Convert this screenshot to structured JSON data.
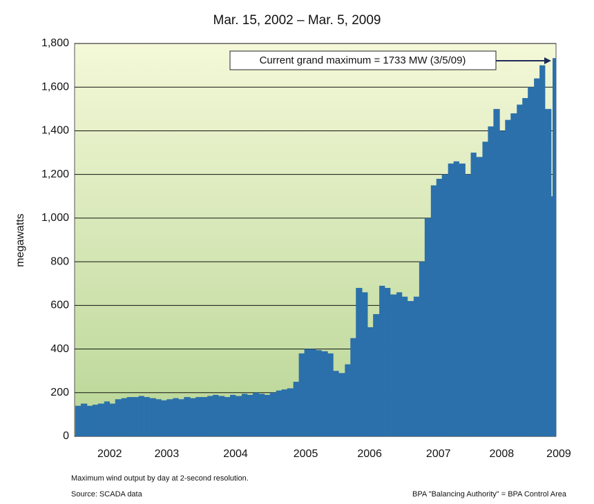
{
  "chart_data": {
    "type": "bar",
    "title": "Mar. 15, 2002 – Mar. 5, 2009",
    "y_label": "megawatts",
    "annotation": "Current grand maximum = 1733 MW (3/5/09)",
    "note": "Maximum wind output by day at 2-second resolution.",
    "source": "Source:  SCADA data",
    "footnote": "BPA \"Balancing Authority\" = BPA Control Area",
    "color": "#2b70aa",
    "grid": true,
    "xlim": [
      2002.2,
      2009.2
    ],
    "ylim": [
      0,
      1800
    ],
    "xticks": [
      {
        "value": 2002.71,
        "label": "2002"
      },
      {
        "value": 2003.54,
        "label": "2003"
      },
      {
        "value": 2004.54,
        "label": "2004"
      },
      {
        "value": 2005.56,
        "label": "2005"
      },
      {
        "value": 2006.49,
        "label": "2006"
      },
      {
        "value": 2007.49,
        "label": "2007"
      },
      {
        "value": 2008.41,
        "label": "2008"
      },
      {
        "value": 2009.24,
        "label": "2009"
      }
    ],
    "yticks": [
      0,
      200,
      400,
      600,
      800,
      {
        "value": 1000,
        "label": "1,000"
      },
      {
        "value": 1200,
        "label": "1,200"
      },
      {
        "value": 1400,
        "label": "1,400"
      },
      {
        "value": 1600,
        "label": "1,600"
      },
      {
        "value": 1800,
        "label": "1,800"
      }
    ],
    "x": [
      2002.21,
      2002.29,
      2002.38,
      2002.46,
      2002.54,
      2002.63,
      2002.71,
      2002.79,
      2002.88,
      2002.96,
      2003.04,
      2003.13,
      2003.21,
      2003.29,
      2003.38,
      2003.46,
      2003.54,
      2003.63,
      2003.71,
      2003.79,
      2003.88,
      2003.96,
      2004.04,
      2004.13,
      2004.21,
      2004.29,
      2004.38,
      2004.46,
      2004.54,
      2004.63,
      2004.71,
      2004.79,
      2004.88,
      2004.96,
      2005.04,
      2005.13,
      2005.21,
      2005.29,
      2005.38,
      2005.46,
      2005.54,
      2005.63,
      2005.71,
      2005.79,
      2005.88,
      2005.96,
      2006.04,
      2006.13,
      2006.21,
      2006.29,
      2006.38,
      2006.46,
      2006.54,
      2006.63,
      2006.71,
      2006.79,
      2006.88,
      2006.96,
      2007.04,
      2007.13,
      2007.21,
      2007.29,
      2007.38,
      2007.46,
      2007.54,
      2007.63,
      2007.71,
      2007.79,
      2007.88,
      2007.96,
      2008.04,
      2008.13,
      2008.21,
      2008.29,
      2008.38,
      2008.46,
      2008.54,
      2008.63,
      2008.71,
      2008.79,
      2008.88,
      2008.96,
      2009.04,
      2009.13,
      2009.15
    ],
    "values": [
      140,
      150,
      140,
      145,
      150,
      160,
      150,
      170,
      175,
      180,
      180,
      185,
      180,
      175,
      170,
      165,
      170,
      175,
      170,
      180,
      175,
      180,
      180,
      185,
      190,
      185,
      180,
      190,
      185,
      195,
      190,
      200,
      195,
      190,
      200,
      210,
      215,
      220,
      250,
      380,
      400,
      400,
      395,
      390,
      380,
      300,
      290,
      330,
      450,
      680,
      660,
      500,
      560,
      690,
      680,
      650,
      660,
      640,
      620,
      640,
      800,
      1000,
      1150,
      1180,
      1200,
      1250,
      1260,
      1250,
      1200,
      1300,
      1280,
      1350,
      1420,
      1500,
      1400,
      1450,
      1480,
      1520,
      1550,
      1600,
      1640,
      1700,
      1500,
      1100,
      1733
    ]
  }
}
